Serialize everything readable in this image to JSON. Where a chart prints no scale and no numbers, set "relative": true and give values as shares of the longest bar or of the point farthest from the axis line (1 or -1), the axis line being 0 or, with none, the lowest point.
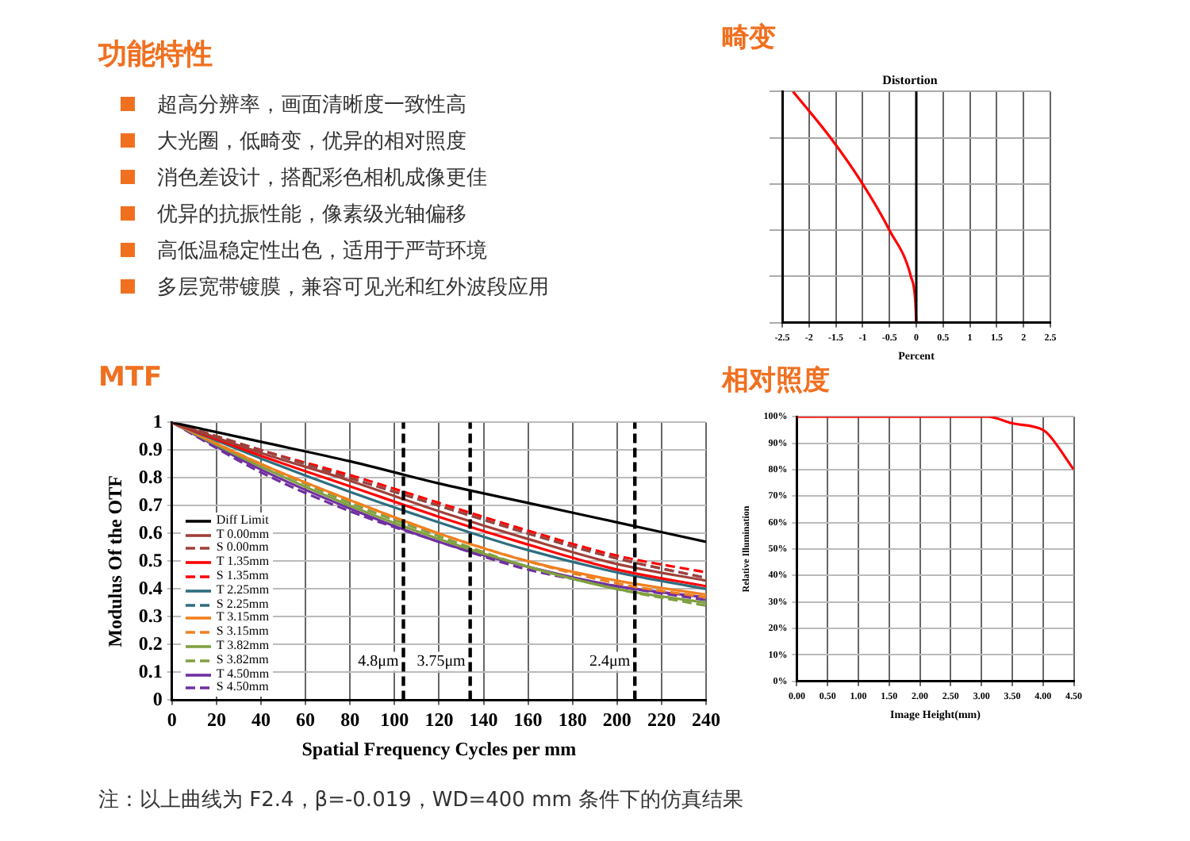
{
  "chart_data": [
    {
      "type": "other",
      "title": "功能特性",
      "annotations": [
        "超高分辨率，画面清晰度一致性高",
        "大光圈，低畸变，优异的相对照度",
        "消色差设计，搭配彩色相机成像更佳",
        "优异的抗振性能，像素级光轴偏移",
        "高低温稳定性出色，适用于严苛环境",
        "多层宽带镀膜，兼容可见光和红外波段应用"
      ]
    },
    {
      "type": "line",
      "title": "畸变",
      "subtitle": "Distortion",
      "xlabel": "Percent",
      "relative": true,
      "tick_labels": "x",
      "grid": true,
      "legend": false,
      "marker": "none",
      "xlim": [
        -2.5,
        2.5
      ],
      "xticks": [
        -2.5,
        -2,
        -1.5,
        -1,
        -0.5,
        0,
        0.5,
        1,
        1.5,
        2,
        2.5
      ],
      "ref_lines": [
        {
          "axis": "x",
          "value": 0,
          "color": "#000000",
          "line_style": "solid"
        }
      ],
      "series": [
        {
          "color": "#ff0000",
          "x": [
            -2.3,
            -1.6,
            -1.0,
            -0.5,
            -0.1,
            -0.02,
            0
          ],
          "values": [
            1,
            0.8,
            0.6,
            0.4,
            0.2,
            0.1,
            0
          ]
        }
      ]
    },
    {
      "type": "line",
      "title": "MTF",
      "xlabel": "Spatial Frequency Cycles per mm",
      "ylabel": "Modulus Of the OTF",
      "grid": true,
      "legend": "bottom left",
      "marker": "none",
      "xlim": [
        0,
        240
      ],
      "xticks": [
        0,
        20,
        40,
        60,
        80,
        100,
        120,
        140,
        160,
        180,
        200,
        220,
        240
      ],
      "ylim": [
        0,
        1
      ],
      "yticks": [
        0,
        0.1,
        0.2,
        0.3,
        0.4,
        0.5,
        0.6,
        0.7,
        0.8,
        0.9,
        1
      ],
      "x": [
        0,
        40,
        80,
        120,
        160,
        200,
        240
      ],
      "ref_lines": [
        {
          "axis": "x",
          "value": 104,
          "label": "4.8μm",
          "color": "#000000",
          "line_style": "dashed"
        },
        {
          "axis": "x",
          "value": 134,
          "label": "3.75μm",
          "color": "#000000",
          "line_style": "dashed"
        },
        {
          "axis": "x",
          "value": 208,
          "label": "2.4μm",
          "color": "#000000",
          "line_style": "dashed"
        }
      ],
      "annotations": [
        "注：以上曲线为 F2.4，β=-0.019，WD=400 mm 条件下的仿真结果"
      ],
      "series": [
        {
          "name": "Diff Limit",
          "color": "#000000",
          "line_style": "solid",
          "values": [
            1,
            0.93,
            0.86,
            0.78,
            0.71,
            0.64,
            0.57
          ]
        },
        {
          "name": "T 0.00mm",
          "color": "#a0403a",
          "line_style": "solid",
          "values": [
            1,
            0.89,
            0.79,
            0.68,
            0.58,
            0.49,
            0.43
          ]
        },
        {
          "name": "S 0.00mm",
          "color": "#a0403a",
          "line_style": "dashed",
          "values": [
            1,
            0.9,
            0.8,
            0.7,
            0.6,
            0.51,
            0.44
          ]
        },
        {
          "name": "T 1.35mm",
          "color": "#ff0000",
          "line_style": "solid",
          "values": [
            1,
            0.88,
            0.77,
            0.66,
            0.56,
            0.47,
            0.41
          ]
        },
        {
          "name": "S 1.35mm",
          "color": "#ff0000",
          "line_style": "dashed",
          "values": [
            1,
            0.9,
            0.81,
            0.71,
            0.61,
            0.52,
            0.46
          ]
        },
        {
          "name": "T 2.25mm",
          "color": "#2e6e80",
          "line_style": "solid",
          "values": [
            1,
            0.87,
            0.75,
            0.64,
            0.54,
            0.46,
            0.4
          ]
        },
        {
          "name": "S 2.25mm",
          "color": "#2e6e80",
          "line_style": "dashed",
          "values": [
            1,
            0.9,
            0.8,
            0.7,
            0.6,
            0.51,
            0.44
          ]
        },
        {
          "name": "T 3.15mm",
          "color": "#f08020",
          "line_style": "solid",
          "values": [
            1,
            0.85,
            0.72,
            0.6,
            0.5,
            0.43,
            0.38
          ]
        },
        {
          "name": "S 3.15mm",
          "color": "#f08020",
          "line_style": "dashed",
          "values": [
            1,
            0.85,
            0.72,
            0.6,
            0.5,
            0.42,
            0.37
          ]
        },
        {
          "name": "T 3.82mm",
          "color": "#80a040",
          "line_style": "solid",
          "values": [
            1,
            0.84,
            0.7,
            0.58,
            0.48,
            0.4,
            0.35
          ]
        },
        {
          "name": "S 3.82mm",
          "color": "#80a040",
          "line_style": "dashed",
          "values": [
            1,
            0.85,
            0.71,
            0.59,
            0.48,
            0.4,
            0.34
          ]
        },
        {
          "name": "T 4.50mm",
          "color": "#7030a0",
          "line_style": "solid",
          "values": [
            1,
            0.83,
            0.69,
            0.57,
            0.48,
            0.41,
            0.37
          ]
        },
        {
          "name": "S 4.50mm",
          "color": "#7030a0",
          "line_style": "dashed",
          "values": [
            1,
            0.82,
            0.68,
            0.57,
            0.47,
            0.41,
            0.36
          ]
        }
      ]
    },
    {
      "type": "line",
      "title": "相对照度",
      "xlabel": "Image Height(mm)",
      "ylabel": "Relative Illumination",
      "grid": true,
      "legend": false,
      "marker": "none",
      "xlim": [
        0,
        4.5
      ],
      "xticks": [
        {
          "value": 0,
          "label": "0.00"
        },
        {
          "value": 0.5,
          "label": "0.50"
        },
        {
          "value": 1,
          "label": "1.00"
        },
        {
          "value": 1.5,
          "label": "1.50"
        },
        {
          "value": 2,
          "label": "2.00"
        },
        {
          "value": 2.5,
          "label": "2.50"
        },
        {
          "value": 3,
          "label": "3.00"
        },
        {
          "value": 3.5,
          "label": "3.50"
        },
        {
          "value": 4,
          "label": "4.00"
        },
        {
          "value": 4.5,
          "label": "4.50"
        }
      ],
      "ylim": [
        0,
        100
      ],
      "yticks": [
        {
          "value": 0,
          "label": "0%"
        },
        {
          "value": 10,
          "label": "10%"
        },
        {
          "value": 20,
          "label": "20%"
        },
        {
          "value": 30,
          "label": "30%"
        },
        {
          "value": 40,
          "label": "40%"
        },
        {
          "value": 50,
          "label": "50%"
        },
        {
          "value": 60,
          "label": "60%"
        },
        {
          "value": 70,
          "label": "70%"
        },
        {
          "value": 80,
          "label": "80%"
        },
        {
          "value": 90,
          "label": "90%"
        },
        {
          "value": 100,
          "label": "100%"
        }
      ],
      "series": [
        {
          "color": "#ff0000",
          "x": [
            0,
            3.1,
            3.5,
            4.0,
            4.1,
            4.5
          ],
          "values": [
            100,
            100,
            97.5,
            95,
            93,
            80
          ]
        }
      ]
    }
  ]
}
